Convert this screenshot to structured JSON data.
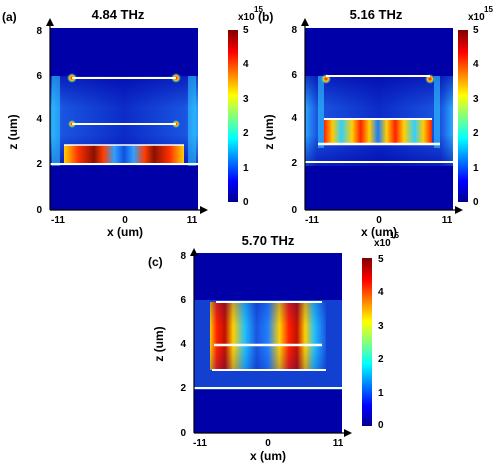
{
  "panels": [
    {
      "label": "(a)",
      "title": "4.84 THz",
      "x_label": "x  (um)",
      "z_label": "z (um)",
      "x_ticks": [
        "-11",
        "0",
        "11"
      ],
      "z_ticks": [
        "0",
        "2",
        "4",
        "6",
        "8"
      ]
    },
    {
      "label": "(b)",
      "title": "5.16 THz",
      "x_label": "x  (um)",
      "z_label": "z (um)",
      "x_ticks": [
        "-11",
        "0",
        "11"
      ],
      "z_ticks": [
        "0",
        "2",
        "4",
        "6",
        "8"
      ]
    },
    {
      "label": "(c)",
      "title": "5.70 THz",
      "x_label": "x (um)",
      "z_label": "z (um)",
      "x_ticks": [
        "-11",
        "0",
        "11"
      ],
      "z_ticks": [
        "0",
        "2",
        "4",
        "6",
        "8"
      ]
    }
  ],
  "colorbar": {
    "exponent_base": "x10",
    "exponent_power": "15",
    "ticks": [
      "0",
      "1",
      "2",
      "3",
      "4",
      "5"
    ],
    "colors": [
      "#00008f",
      "#0000ff",
      "#00ffff",
      "#ffff00",
      "#ff0000",
      "#800000"
    ]
  },
  "colors": {
    "field_background": "#0000a8",
    "cavity_background": "#1a55e0",
    "hotspot": "#ff2000",
    "warm": "#ffd000",
    "interface_line": "#ffffff"
  }
}
